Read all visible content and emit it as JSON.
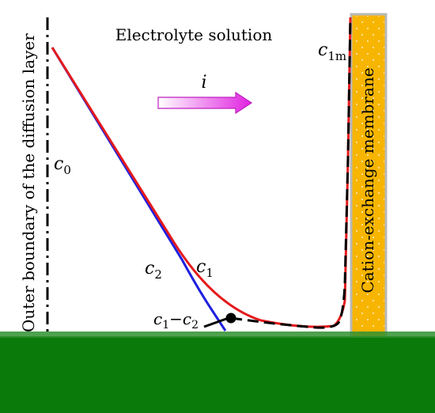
{
  "labels": {
    "title": "Electrolyte solution",
    "boundary": "Outer boundary of the diffusion layer",
    "membrane": "Cation-exchange membrane",
    "current": "i",
    "c0_main": "c",
    "c0_sub": "0",
    "c1m_main": "c",
    "c1m_sub": "1m",
    "c1_main": "c",
    "c1_sub": "1",
    "c2_main": "c",
    "c2_sub": "2",
    "diff_c1_main": "c",
    "diff_c1_sub": "1",
    "diff_sep": "−",
    "diff_c2_main": "c",
    "diff_c2_sub": "2"
  },
  "colors": {
    "c1_curve": "#e41a1c",
    "c2_curve": "#1f1fe0",
    "difference_curve": "#000000",
    "membrane_fill": "#f7b500",
    "membrane_border": "#b8b8b8",
    "arrow_start": "#ffffff",
    "arrow_end": "#e022e0",
    "bottom_band": "#0a7a0a"
  }
}
